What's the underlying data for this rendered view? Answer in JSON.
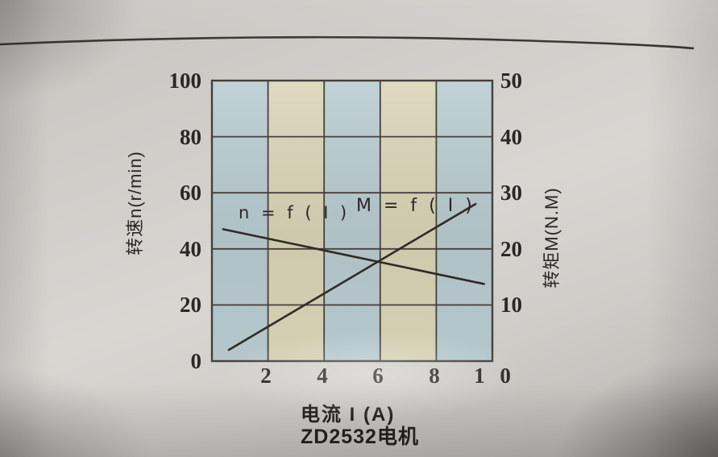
{
  "photo": {
    "paper_color": "#d2d0cb",
    "rule_line_color": "#3a3530"
  },
  "chart_data": {
    "type": "line",
    "title": "ZD2532电机",
    "xlabel": "电流 I (A)",
    "x_range": [
      0,
      10
    ],
    "x_ticks": [
      "2",
      "4",
      "6",
      "8",
      "1 0"
    ],
    "left_axis": {
      "label": "转速n(r/min)",
      "range": [
        0,
        100
      ],
      "ticks": [
        "100",
        "80",
        "60",
        "40",
        "20",
        "0"
      ]
    },
    "right_axis": {
      "label": "转矩M(N.M)",
      "range": [
        0,
        50
      ],
      "ticks": [
        "50",
        "40",
        "30",
        "20",
        "10"
      ]
    },
    "series": [
      {
        "name": "n = f ( I )",
        "axis": "left",
        "points": [
          [
            0.4,
            47.0
          ],
          [
            9.7,
            27.5
          ]
        ]
      },
      {
        "name": "M = f ( I )",
        "axis": "right",
        "points": [
          [
            0.6,
            2.0
          ],
          [
            9.4,
            28.0
          ]
        ]
      }
    ],
    "grid_on": true,
    "legend_position": "inline-labels",
    "stripe_colors": [
      "#b7cbd1",
      "#d9d4b6"
    ],
    "grid_color": "#45403a",
    "line_color": "#2f2b26"
  }
}
